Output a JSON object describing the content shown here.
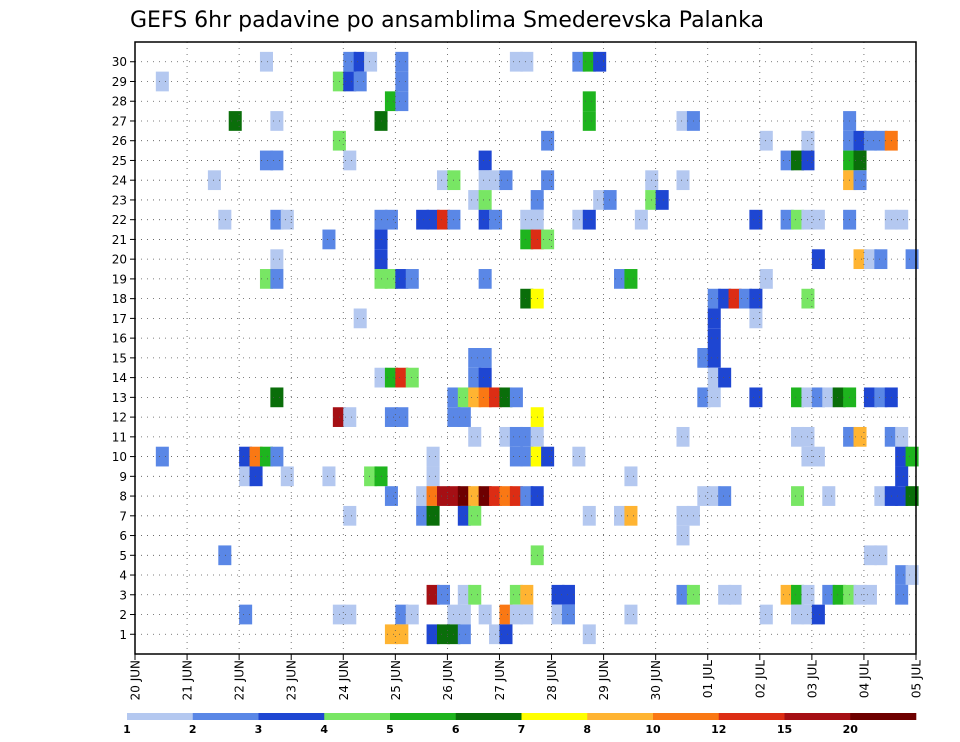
{
  "chart_data": {
    "type": "heatmap",
    "title": "GEFS 6hr padavine po ansamblima Smederevska Palanka",
    "xlabel": "",
    "ylabel": "",
    "y_ticks": [
      "1",
      "2",
      "3",
      "4",
      "5",
      "6",
      "7",
      "8",
      "9",
      "10",
      "11",
      "12",
      "13",
      "14",
      "15",
      "16",
      "17",
      "18",
      "19",
      "20",
      "21",
      "22",
      "23",
      "24",
      "25",
      "26",
      "27",
      "28",
      "29",
      "30"
    ],
    "x_ticks": [
      "20 JUN",
      "21 JUN",
      "22 JUN",
      "23 JUN",
      "24 JUN",
      "25 JUN",
      "26 JUN",
      "27 JUN",
      "28 JUN",
      "29 JUN",
      "30 JUN",
      "01 JUL",
      "02 JUL",
      "03 JUL",
      "04 JUL",
      "05 JUL"
    ],
    "time_steps_per_day": 4,
    "grid": true,
    "colorbar": {
      "placement": "bottom",
      "labels": [
        "1",
        "2",
        "3",
        "4",
        "5",
        "6",
        "7",
        "8",
        "10",
        "12",
        "15",
        "20"
      ],
      "colors": [
        "#b4c8f0",
        "#5a87e6",
        "#1e46d2",
        "#78e664",
        "#1eb41e",
        "#0a6e0a",
        "#ffff00",
        "#ffb432",
        "#fa7814",
        "#dc2d14",
        "#a50f14",
        "#6e0000"
      ]
    },
    "cells": [
      [
        30,
        2.4,
        1
      ],
      [
        30,
        4.0,
        2
      ],
      [
        30,
        4.2,
        3
      ],
      [
        30,
        4.4,
        1
      ],
      [
        30,
        5.0,
        2
      ],
      [
        30,
        7.2,
        1
      ],
      [
        30,
        7.4,
        1
      ],
      [
        30,
        8.4,
        2
      ],
      [
        30,
        8.6,
        5
      ],
      [
        30,
        8.8,
        3
      ],
      [
        29,
        0.4,
        1
      ],
      [
        29,
        3.8,
        4
      ],
      [
        29,
        4.0,
        3
      ],
      [
        29,
        4.2,
        2
      ],
      [
        29,
        5.0,
        2
      ],
      [
        28,
        4.8,
        5
      ],
      [
        28,
        5.0,
        2
      ],
      [
        28,
        8.6,
        5
      ],
      [
        27,
        1.8,
        6
      ],
      [
        27,
        2.6,
        1
      ],
      [
        27,
        4.6,
        6
      ],
      [
        27,
        8.6,
        5
      ],
      [
        27,
        10.4,
        1
      ],
      [
        27,
        10.6,
        2
      ],
      [
        27,
        13.6,
        2
      ],
      [
        26,
        3.8,
        4
      ],
      [
        26,
        7.8,
        2
      ],
      [
        26,
        12.0,
        1
      ],
      [
        26,
        12.8,
        1
      ],
      [
        26,
        13.6,
        2
      ],
      [
        26,
        13.8,
        3
      ],
      [
        26,
        14.0,
        2
      ],
      [
        26,
        14.2,
        2
      ],
      [
        26,
        14.4,
        9
      ],
      [
        25,
        2.4,
        2
      ],
      [
        25,
        2.6,
        2
      ],
      [
        25,
        4.0,
        1
      ],
      [
        25,
        6.6,
        3
      ],
      [
        25,
        12.4,
        2
      ],
      [
        25,
        12.6,
        6
      ],
      [
        25,
        12.8,
        3
      ],
      [
        25,
        13.6,
        5
      ],
      [
        25,
        13.8,
        6
      ],
      [
        24,
        1.4,
        1
      ],
      [
        24,
        5.8,
        1
      ],
      [
        24,
        6.0,
        4
      ],
      [
        24,
        6.6,
        1
      ],
      [
        24,
        6.8,
        1
      ],
      [
        24,
        7.0,
        2
      ],
      [
        24,
        7.8,
        2
      ],
      [
        24,
        9.8,
        1
      ],
      [
        24,
        10.4,
        1
      ],
      [
        24,
        13.6,
        8
      ],
      [
        24,
        13.8,
        2
      ],
      [
        23,
        6.4,
        1
      ],
      [
        23,
        6.6,
        4
      ],
      [
        23,
        7.6,
        2
      ],
      [
        23,
        8.8,
        1
      ],
      [
        23,
        9.0,
        2
      ],
      [
        23,
        9.8,
        4
      ],
      [
        23,
        10.0,
        3
      ],
      [
        22,
        1.6,
        1
      ],
      [
        22,
        2.6,
        2
      ],
      [
        22,
        2.8,
        1
      ],
      [
        22,
        4.6,
        2
      ],
      [
        22,
        4.8,
        2
      ],
      [
        22,
        5.4,
        3
      ],
      [
        22,
        5.6,
        3
      ],
      [
        22,
        5.8,
        10
      ],
      [
        22,
        6.0,
        2
      ],
      [
        22,
        6.6,
        3
      ],
      [
        22,
        6.8,
        2
      ],
      [
        22,
        7.4,
        1
      ],
      [
        22,
        7.6,
        1
      ],
      [
        22,
        8.4,
        1
      ],
      [
        22,
        8.6,
        3
      ],
      [
        22,
        9.6,
        1
      ],
      [
        22,
        11.8,
        3
      ],
      [
        22,
        12.4,
        2
      ],
      [
        22,
        12.6,
        4
      ],
      [
        22,
        12.8,
        1
      ],
      [
        22,
        13.0,
        1
      ],
      [
        22,
        13.6,
        2
      ],
      [
        22,
        14.4,
        1
      ],
      [
        22,
        14.6,
        1
      ],
      [
        21,
        3.6,
        2
      ],
      [
        21,
        4.6,
        3
      ],
      [
        21,
        7.4,
        5
      ],
      [
        21,
        7.6,
        10
      ],
      [
        21,
        7.8,
        4
      ],
      [
        20,
        2.6,
        1
      ],
      [
        20,
        4.6,
        3
      ],
      [
        20,
        13.0,
        3
      ],
      [
        20,
        13.8,
        8
      ],
      [
        20,
        14.0,
        1
      ],
      [
        20,
        14.2,
        2
      ],
      [
        20,
        14.8,
        2
      ],
      [
        19,
        2.4,
        4
      ],
      [
        19,
        2.6,
        2
      ],
      [
        19,
        4.6,
        4
      ],
      [
        19,
        4.8,
        4
      ],
      [
        19,
        5.0,
        3
      ],
      [
        19,
        5.2,
        2
      ],
      [
        19,
        6.6,
        2
      ],
      [
        19,
        9.2,
        2
      ],
      [
        19,
        9.4,
        5
      ],
      [
        19,
        12.0,
        1
      ],
      [
        18,
        7.4,
        6
      ],
      [
        18,
        7.6,
        7
      ],
      [
        18,
        11.0,
        2
      ],
      [
        18,
        11.2,
        3
      ],
      [
        18,
        11.4,
        10
      ],
      [
        18,
        11.6,
        2
      ],
      [
        18,
        11.8,
        3
      ],
      [
        18,
        12.8,
        4
      ],
      [
        17,
        4.2,
        1
      ],
      [
        17,
        11.0,
        3
      ],
      [
        17,
        11.8,
        1
      ],
      [
        16,
        11.0,
        3
      ],
      [
        15,
        6.4,
        2
      ],
      [
        15,
        6.6,
        2
      ],
      [
        15,
        10.8,
        2
      ],
      [
        15,
        11.0,
        3
      ],
      [
        14,
        4.6,
        1
      ],
      [
        14,
        4.8,
        5
      ],
      [
        14,
        5.0,
        10
      ],
      [
        14,
        5.2,
        4
      ],
      [
        14,
        6.4,
        2
      ],
      [
        14,
        6.6,
        3
      ],
      [
        14,
        11.0,
        1
      ],
      [
        14,
        11.2,
        3
      ],
      [
        13,
        2.6,
        6
      ],
      [
        13,
        6.0,
        2
      ],
      [
        13,
        6.2,
        4
      ],
      [
        13,
        6.4,
        8
      ],
      [
        13,
        6.6,
        9
      ],
      [
        13,
        6.8,
        10
      ],
      [
        13,
        7.0,
        6
      ],
      [
        13,
        7.2,
        2
      ],
      [
        13,
        10.8,
        2
      ],
      [
        13,
        11.0,
        1
      ],
      [
        13,
        11.8,
        3
      ],
      [
        13,
        12.6,
        5
      ],
      [
        13,
        12.8,
        1
      ],
      [
        13,
        13.0,
        2
      ],
      [
        13,
        13.2,
        1
      ],
      [
        13,
        13.4,
        6
      ],
      [
        13,
        13.6,
        5
      ],
      [
        13,
        14.0,
        3
      ],
      [
        13,
        14.2,
        2
      ],
      [
        13,
        14.4,
        3
      ],
      [
        12,
        3.8,
        11
      ],
      [
        12,
        4.0,
        1
      ],
      [
        12,
        4.8,
        2
      ],
      [
        12,
        5.0,
        2
      ],
      [
        12,
        6.0,
        2
      ],
      [
        12,
        6.2,
        2
      ],
      [
        12,
        7.6,
        7
      ],
      [
        11,
        6.4,
        1
      ],
      [
        11,
        7.0,
        1
      ],
      [
        11,
        7.2,
        2
      ],
      [
        11,
        7.4,
        2
      ],
      [
        11,
        7.6,
        1
      ],
      [
        11,
        10.4,
        1
      ],
      [
        11,
        12.6,
        1
      ],
      [
        11,
        12.8,
        1
      ],
      [
        11,
        13.6,
        2
      ],
      [
        11,
        13.8,
        8
      ],
      [
        11,
        14.4,
        2
      ],
      [
        11,
        14.6,
        1
      ],
      [
        10,
        0.4,
        2
      ],
      [
        10,
        2.0,
        3
      ],
      [
        10,
        2.2,
        9
      ],
      [
        10,
        2.4,
        5
      ],
      [
        10,
        2.6,
        2
      ],
      [
        10,
        5.6,
        1
      ],
      [
        10,
        7.2,
        2
      ],
      [
        10,
        7.4,
        2
      ],
      [
        10,
        7.6,
        7
      ],
      [
        10,
        7.8,
        3
      ],
      [
        10,
        8.4,
        1
      ],
      [
        10,
        12.8,
        1
      ],
      [
        10,
        13.0,
        1
      ],
      [
        10,
        14.6,
        3
      ],
      [
        10,
        14.8,
        5
      ],
      [
        9,
        2.0,
        1
      ],
      [
        9,
        2.2,
        3
      ],
      [
        9,
        2.8,
        1
      ],
      [
        9,
        3.6,
        1
      ],
      [
        9,
        4.4,
        4
      ],
      [
        9,
        4.6,
        5
      ],
      [
        9,
        5.6,
        1
      ],
      [
        9,
        9.4,
        1
      ],
      [
        9,
        14.6,
        3
      ],
      [
        8,
        4.8,
        2
      ],
      [
        8,
        5.4,
        1
      ],
      [
        8,
        5.6,
        9
      ],
      [
        8,
        5.8,
        11
      ],
      [
        8,
        6.0,
        11
      ],
      [
        8,
        6.2,
        12
      ],
      [
        8,
        6.4,
        8
      ],
      [
        8,
        6.6,
        12
      ],
      [
        8,
        6.8,
        10
      ],
      [
        8,
        7.0,
        9
      ],
      [
        8,
        7.2,
        10
      ],
      [
        8,
        7.4,
        2
      ],
      [
        8,
        7.6,
        3
      ],
      [
        8,
        10.8,
        1
      ],
      [
        8,
        11.0,
        1
      ],
      [
        8,
        11.2,
        2
      ],
      [
        8,
        12.6,
        4
      ],
      [
        8,
        13.2,
        1
      ],
      [
        8,
        14.2,
        1
      ],
      [
        8,
        14.4,
        3
      ],
      [
        8,
        14.6,
        3
      ],
      [
        8,
        14.8,
        6
      ],
      [
        7,
        4.0,
        1
      ],
      [
        7,
        5.4,
        2
      ],
      [
        7,
        5.6,
        6
      ],
      [
        7,
        6.2,
        3
      ],
      [
        7,
        6.4,
        4
      ],
      [
        7,
        8.6,
        1
      ],
      [
        7,
        9.2,
        1
      ],
      [
        7,
        9.4,
        8
      ],
      [
        7,
        10.4,
        1
      ],
      [
        7,
        10.6,
        1
      ],
      [
        6,
        10.4,
        1
      ],
      [
        5,
        1.6,
        2
      ],
      [
        5,
        7.6,
        4
      ],
      [
        5,
        14.0,
        1
      ],
      [
        5,
        14.2,
        1
      ],
      [
        4,
        14.6,
        2
      ],
      [
        4,
        14.8,
        1
      ],
      [
        3,
        5.6,
        11
      ],
      [
        3,
        5.8,
        2
      ],
      [
        3,
        6.2,
        1
      ],
      [
        3,
        6.4,
        4
      ],
      [
        3,
        7.2,
        4
      ],
      [
        3,
        7.4,
        8
      ],
      [
        3,
        8.0,
        3
      ],
      [
        3,
        8.2,
        3
      ],
      [
        3,
        10.4,
        2
      ],
      [
        3,
        10.6,
        4
      ],
      [
        3,
        11.2,
        1
      ],
      [
        3,
        11.4,
        1
      ],
      [
        3,
        12.4,
        8
      ],
      [
        3,
        12.6,
        5
      ],
      [
        3,
        12.8,
        1
      ],
      [
        3,
        13.2,
        2
      ],
      [
        3,
        13.4,
        5
      ],
      [
        3,
        13.6,
        4
      ],
      [
        3,
        13.8,
        1
      ],
      [
        3,
        14.0,
        1
      ],
      [
        3,
        14.6,
        2
      ],
      [
        2,
        2.0,
        2
      ],
      [
        2,
        3.8,
        1
      ],
      [
        2,
        4.0,
        1
      ],
      [
        2,
        5.0,
        2
      ],
      [
        2,
        5.2,
        1
      ],
      [
        2,
        6.0,
        1
      ],
      [
        2,
        6.2,
        1
      ],
      [
        2,
        6.6,
        1
      ],
      [
        2,
        7.0,
        9
      ],
      [
        2,
        7.2,
        1
      ],
      [
        2,
        7.4,
        1
      ],
      [
        2,
        8.0,
        1
      ],
      [
        2,
        8.2,
        2
      ],
      [
        2,
        9.4,
        1
      ],
      [
        2,
        12.0,
        1
      ],
      [
        2,
        12.6,
        1
      ],
      [
        2,
        12.8,
        1
      ],
      [
        2,
        13.0,
        3
      ],
      [
        1,
        4.8,
        8
      ],
      [
        1,
        5.0,
        8
      ],
      [
        1,
        5.6,
        3
      ],
      [
        1,
        5.8,
        6
      ],
      [
        1,
        6.0,
        6
      ],
      [
        1,
        6.2,
        2
      ],
      [
        1,
        6.8,
        1
      ],
      [
        1,
        7.0,
        3
      ],
      [
        1,
        8.6,
        1
      ]
    ]
  }
}
